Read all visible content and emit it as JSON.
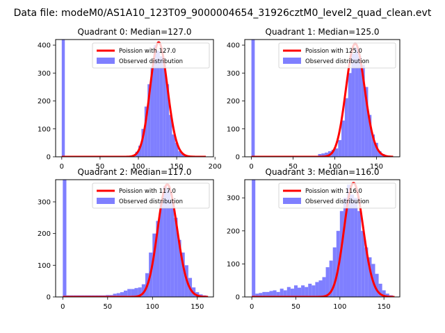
{
  "figure": {
    "suptitle": "Data file: modeM0/AS1A10_123T09_9000004654_31926cztM0_level2_quad_clean.evt"
  },
  "colors": {
    "histogram": "#7f7fff",
    "poisson_line": "#ff0000",
    "axes": "#000000",
    "background": "#ffffff"
  },
  "chart_data": [
    {
      "type": "bar",
      "title": "Quadrant 0: Median=127.0",
      "median": 127.0,
      "xlim": [
        -8,
        198
      ],
      "ylim": [
        0,
        420
      ],
      "xticks": [
        0,
        50,
        100,
        150,
        200
      ],
      "yticks": [
        0,
        100,
        200,
        300,
        400
      ],
      "legend": {
        "placement": "top-right",
        "entries": [
          "Poission with 127.0",
          "Observed distribution"
        ]
      },
      "series": [
        {
          "name": "Observed distribution",
          "kind": "histogram",
          "bin_width": 4,
          "bins": [
            [
              0,
              420
            ],
            [
              96,
              18
            ],
            [
              100,
              40
            ],
            [
              104,
              100
            ],
            [
              108,
              180
            ],
            [
              112,
              260
            ],
            [
              116,
              320
            ],
            [
              120,
              400
            ],
            [
              124,
              380
            ],
            [
              128,
              360
            ],
            [
              132,
              330
            ],
            [
              136,
              260
            ],
            [
              140,
              150
            ],
            [
              144,
              80
            ],
            [
              148,
              50
            ],
            [
              152,
              20
            ],
            [
              156,
              10
            ],
            [
              160,
              4
            ]
          ]
        },
        {
          "name": "Poission with 127.0",
          "kind": "poisson_curve",
          "lambda": 127.0,
          "scale": 410,
          "x_range": [
            0,
            188
          ]
        }
      ]
    },
    {
      "type": "bar",
      "title": "Quadrant 1: Median=125.0",
      "median": 125.0,
      "xlim": [
        -8,
        178
      ],
      "ylim": [
        0,
        420
      ],
      "xticks": [
        0,
        50,
        100,
        150
      ],
      "yticks": [
        0,
        100,
        200,
        300,
        400
      ],
      "legend": {
        "placement": "top-right",
        "entries": [
          "Poission with 125.0",
          "Observed distribution"
        ]
      },
      "series": [
        {
          "name": "Observed distribution",
          "kind": "histogram",
          "bin_width": 4,
          "bins": [
            [
              0,
              420
            ],
            [
              80,
              10
            ],
            [
              84,
              12
            ],
            [
              88,
              15
            ],
            [
              92,
              20
            ],
            [
              96,
              25
            ],
            [
              100,
              30
            ],
            [
              104,
              60
            ],
            [
              108,
              130
            ],
            [
              112,
              210
            ],
            [
              116,
              300
            ],
            [
              120,
              370
            ],
            [
              124,
              390
            ],
            [
              128,
              360
            ],
            [
              132,
              330
            ],
            [
              136,
              250
            ],
            [
              140,
              150
            ],
            [
              144,
              80
            ],
            [
              148,
              50
            ],
            [
              152,
              20
            ],
            [
              156,
              10
            ],
            [
              160,
              5
            ]
          ]
        },
        {
          "name": "Poission with 125.0",
          "kind": "poisson_curve",
          "lambda": 125.0,
          "scale": 405,
          "x_range": [
            0,
            170
          ]
        }
      ]
    },
    {
      "type": "bar",
      "title": "Quadrant 2: Median=117.0",
      "median": 117.0,
      "xlim": [
        -8,
        168
      ],
      "ylim": [
        0,
        370
      ],
      "xticks": [
        0,
        50,
        100,
        150
      ],
      "yticks": [
        0,
        100,
        200,
        300
      ],
      "legend": {
        "placement": "top-right",
        "entries": [
          "Poission with 117.0",
          "Observed distribution"
        ]
      },
      "series": [
        {
          "name": "Observed distribution",
          "kind": "histogram",
          "bin_width": 4,
          "bins": [
            [
              0,
              370
            ],
            [
              4,
              5
            ],
            [
              8,
              5
            ],
            [
              12,
              5
            ],
            [
              16,
              5
            ],
            [
              20,
              5
            ],
            [
              24,
              5
            ],
            [
              28,
              5
            ],
            [
              32,
              5
            ],
            [
              36,
              5
            ],
            [
              40,
              5
            ],
            [
              44,
              5
            ],
            [
              48,
              6
            ],
            [
              52,
              6
            ],
            [
              56,
              10
            ],
            [
              60,
              12
            ],
            [
              64,
              15
            ],
            [
              68,
              20
            ],
            [
              72,
              25
            ],
            [
              76,
              25
            ],
            [
              80,
              28
            ],
            [
              84,
              30
            ],
            [
              88,
              40
            ],
            [
              92,
              75
            ],
            [
              96,
              140
            ],
            [
              100,
              200
            ],
            [
              104,
              240
            ],
            [
              108,
              300
            ],
            [
              112,
              350
            ],
            [
              116,
              340
            ],
            [
              120,
              300
            ],
            [
              124,
              250
            ],
            [
              128,
              180
            ],
            [
              132,
              140
            ],
            [
              136,
              100
            ],
            [
              140,
              60
            ],
            [
              144,
              30
            ],
            [
              148,
              15
            ],
            [
              152,
              8
            ],
            [
              156,
              5
            ]
          ]
        },
        {
          "name": "Poission with 117.0",
          "kind": "poisson_curve",
          "lambda": 117.0,
          "scale": 355,
          "x_range": [
            0,
            162
          ]
        }
      ]
    },
    {
      "type": "bar",
      "title": "Quadrant 3: Median=116.0",
      "median": 116.0,
      "xlim": [
        -8,
        168
      ],
      "ylim": [
        0,
        355
      ],
      "xticks": [
        0,
        50,
        100,
        150
      ],
      "yticks": [
        0,
        100,
        200,
        300
      ],
      "legend": {
        "placement": "top-right",
        "entries": [
          "Poission with 116.0",
          "Observed distribution"
        ]
      },
      "series": [
        {
          "name": "Observed distribution",
          "kind": "histogram",
          "bin_width": 4,
          "bins": [
            [
              0,
              355
            ],
            [
              4,
              10
            ],
            [
              8,
              12
            ],
            [
              12,
              15
            ],
            [
              16,
              15
            ],
            [
              20,
              18
            ],
            [
              24,
              20
            ],
            [
              28,
              15
            ],
            [
              32,
              25
            ],
            [
              36,
              20
            ],
            [
              40,
              30
            ],
            [
              44,
              25
            ],
            [
              48,
              35
            ],
            [
              52,
              28
            ],
            [
              56,
              35
            ],
            [
              60,
              30
            ],
            [
              64,
              40
            ],
            [
              68,
              35
            ],
            [
              72,
              45
            ],
            [
              76,
              50
            ],
            [
              80,
              60
            ],
            [
              84,
              90
            ],
            [
              88,
              110
            ],
            [
              92,
              150
            ],
            [
              96,
              200
            ],
            [
              100,
              260
            ],
            [
              104,
              300
            ],
            [
              108,
              340
            ],
            [
              112,
              310
            ],
            [
              116,
              300
            ],
            [
              120,
              260
            ],
            [
              124,
              200
            ],
            [
              128,
              150
            ],
            [
              132,
              120
            ],
            [
              136,
              100
            ],
            [
              140,
              70
            ],
            [
              144,
              40
            ],
            [
              148,
              20
            ],
            [
              152,
              10
            ],
            [
              156,
              5
            ]
          ]
        },
        {
          "name": "Poission with 116.0",
          "kind": "poisson_curve",
          "lambda": 116.0,
          "scale": 345,
          "x_range": [
            0,
            162
          ]
        }
      ]
    }
  ]
}
